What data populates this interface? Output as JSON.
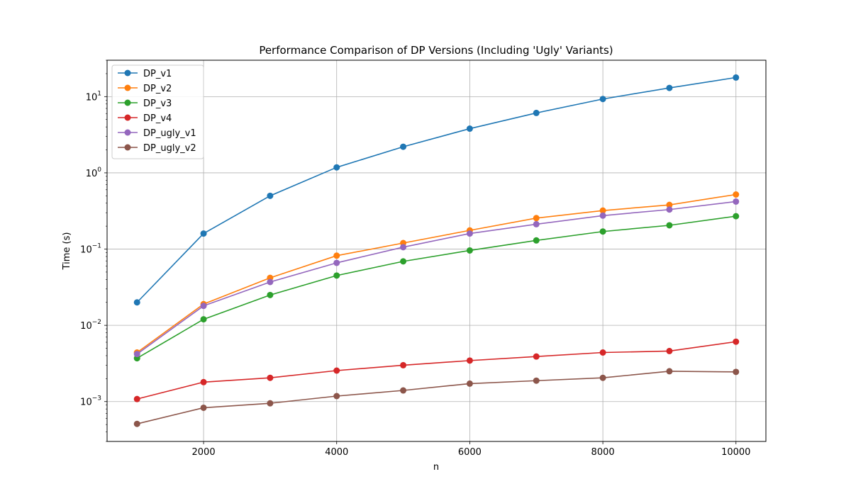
{
  "chart_data": {
    "type": "line",
    "title": "Performance Comparison of DP Versions (Including 'Ugly' Variants)",
    "xlabel": "n",
    "ylabel": "Time (s)",
    "x": [
      1000,
      2000,
      3000,
      4000,
      5000,
      6000,
      7000,
      8000,
      9000,
      10000
    ],
    "xlim": [
      550,
      10450
    ],
    "xticks": [
      2000,
      4000,
      6000,
      8000,
      10000
    ],
    "xtick_labels": [
      "2000",
      "4000",
      "6000",
      "8000",
      "10000"
    ],
    "yscale": "log",
    "ylim": [
      0.0003,
      30
    ],
    "ytick_exponents": [
      -3,
      -2,
      -1,
      0,
      1
    ],
    "grid": true,
    "legend_position": "upper-left",
    "series": [
      {
        "name": "DP_v1",
        "color": "#1f77b4",
        "values": [
          0.02,
          0.16,
          0.5,
          1.18,
          2.2,
          3.8,
          6.1,
          9.3,
          13.0,
          17.8
        ]
      },
      {
        "name": "DP_v2",
        "color": "#ff7f0e",
        "values": [
          0.0044,
          0.019,
          0.042,
          0.082,
          0.12,
          0.176,
          0.255,
          0.32,
          0.38,
          0.52
        ]
      },
      {
        "name": "DP_v3",
        "color": "#2ca02c",
        "values": [
          0.0037,
          0.012,
          0.025,
          0.045,
          0.069,
          0.096,
          0.13,
          0.17,
          0.205,
          0.27
        ]
      },
      {
        "name": "DP_v4",
        "color": "#d62728",
        "values": [
          0.00108,
          0.0018,
          0.00205,
          0.00255,
          0.003,
          0.00345,
          0.0039,
          0.0044,
          0.0046,
          0.0061
        ]
      },
      {
        "name": "DP_ugly_v1",
        "color": "#9467bd",
        "values": [
          0.0042,
          0.018,
          0.037,
          0.066,
          0.106,
          0.16,
          0.212,
          0.275,
          0.33,
          0.42
        ]
      },
      {
        "name": "DP_ugly_v2",
        "color": "#8c564b",
        "values": [
          0.00051,
          0.00083,
          0.00095,
          0.00118,
          0.0014,
          0.00172,
          0.00188,
          0.00205,
          0.0025,
          0.00245
        ]
      }
    ]
  }
}
